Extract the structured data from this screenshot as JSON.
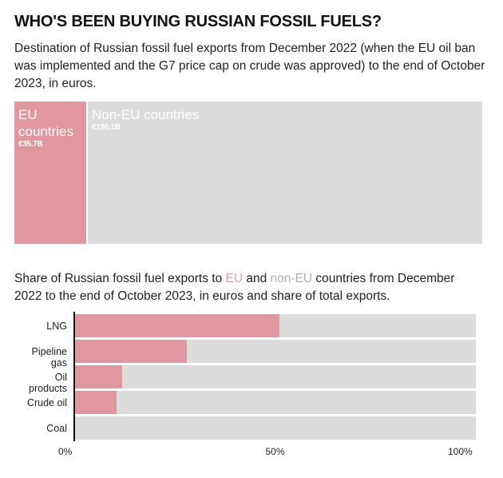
{
  "title": "WHO'S BEEN BUYING RUSSIAN FOSSIL FUELS?",
  "subtitle": "Destination of Russian fossil fuel exports from December 2022 (when the EU oil ban was implemented and the G7 price cap on crude was approved) to the end of October 2023, in euros.",
  "subtitle2": {
    "before": "Share of Russian fossil fuel exports to ",
    "eu": "EU",
    "and": " and ",
    "non_eu": "non-EU",
    "after": " countries from December 2022 to the end of October 2023, in euros and share of total exports."
  },
  "colors": {
    "eu": "#e0979f",
    "non_eu": "#dcdcdc"
  },
  "chart_data": [
    {
      "type": "treemap",
      "title": "",
      "items": [
        {
          "name": "EU countries",
          "value": 35.7,
          "value_label": "€35.7B",
          "color": "#e0979f"
        },
        {
          "name": "Non-EU countries",
          "value": 196.1,
          "value_label": "€196.1B",
          "color": "#dcdcdc"
        }
      ]
    },
    {
      "type": "bar",
      "orientation": "horizontal",
      "stacked": true,
      "categories": [
        "LNG",
        "Pipeline gas",
        "Oil products",
        "Crude oil",
        "Coal"
      ],
      "series": [
        {
          "name": "EU",
          "values": [
            51,
            28,
            12,
            10.5,
            0
          ],
          "color": "#e0979f"
        },
        {
          "name": "non-EU",
          "values": [
            49,
            72,
            88,
            89.5,
            100
          ],
          "color": "#dcdcdc"
        }
      ],
      "xlim": [
        0,
        100
      ],
      "xticks": [
        "0%",
        "50%",
        "100%"
      ],
      "xtick_values": [
        0,
        50,
        100
      ]
    }
  ]
}
